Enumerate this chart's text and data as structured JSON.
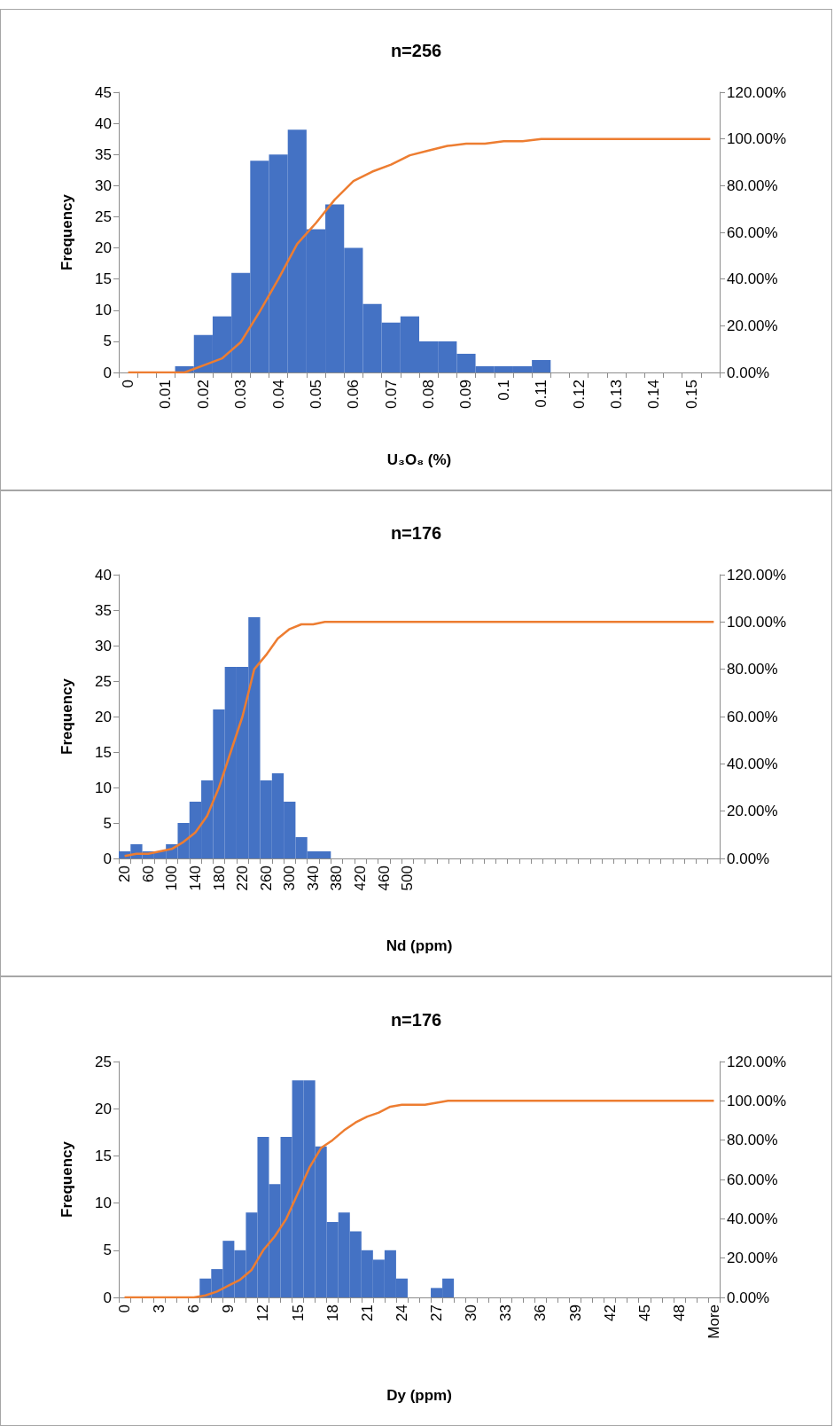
{
  "chart_data": [
    {
      "type": "bar",
      "title": "n=256",
      "xlabel": "U₃O₈ (%)",
      "ylabel": "Frequency",
      "categories": [
        "0",
        null,
        "0.01",
        null,
        "0.02",
        null,
        "0.03",
        null,
        "0.04",
        null,
        "0.05",
        null,
        "0.06",
        null,
        "0.07",
        null,
        "0.08",
        null,
        "0.09",
        null,
        "0.1",
        null,
        "0.11",
        null,
        "0.12",
        null,
        "0.13",
        null,
        "0.14",
        null,
        "0.15",
        null
      ],
      "series": [
        {
          "color": "#4472c4",
          "values": [
            0,
            0,
            0,
            1,
            6,
            9,
            16,
            34,
            35,
            39,
            23,
            27,
            20,
            11,
            8,
            9,
            5,
            5,
            3,
            1,
            1,
            1,
            2,
            0,
            0,
            0,
            0,
            0,
            0,
            0,
            0,
            0
          ]
        },
        {
          "type": "line",
          "axis": "y2",
          "color": "#ed7d31",
          "values": [
            0,
            0,
            0,
            0,
            3,
            6,
            13,
            26,
            40,
            55,
            64,
            74,
            82,
            86,
            89,
            93,
            95,
            97,
            98,
            98,
            99,
            99,
            100,
            100,
            100,
            100,
            100,
            100,
            100,
            100,
            100,
            100
          ]
        }
      ],
      "ylim": [
        0,
        45
      ],
      "yticks": [
        0,
        5,
        10,
        15,
        20,
        25,
        30,
        35,
        40,
        45
      ],
      "y2lim": [
        0,
        120
      ],
      "y2ticks": [
        {
          "value": 0,
          "label": "0.00%"
        },
        {
          "value": 20,
          "label": "20.00%"
        },
        {
          "value": 40,
          "label": "40.00%"
        },
        {
          "value": 60,
          "label": "60.00%"
        },
        {
          "value": 80,
          "label": "80.00%"
        },
        {
          "value": 100,
          "label": "100.00%"
        },
        {
          "value": 120,
          "label": "120.00%"
        }
      ]
    },
    {
      "type": "bar",
      "title": "n=176",
      "xlabel": "Nd (ppm)",
      "ylabel": "Frequency",
      "categories": [
        "20",
        null,
        "60",
        null,
        "100",
        null,
        "140",
        null,
        "180",
        null,
        "220",
        null,
        "260",
        null,
        "300",
        null,
        "340",
        null,
        "380",
        null,
        "420",
        null,
        "460",
        null,
        "500",
        null,
        null,
        null,
        null,
        null,
        null,
        null,
        null,
        null,
        null,
        null,
        null,
        null,
        null,
        null,
        null,
        null,
        null,
        null,
        null,
        null,
        null,
        null,
        null,
        null,
        null
      ],
      "series": [
        {
          "color": "#4472c4",
          "values": [
            1,
            2,
            1,
            1,
            2,
            5,
            8,
            11,
            21,
            27,
            27,
            34,
            11,
            12,
            8,
            3,
            1,
            1,
            0,
            0,
            0,
            0,
            0,
            0,
            0,
            0,
            0,
            0,
            0,
            0,
            0,
            0,
            0,
            0,
            0,
            0,
            0,
            0,
            0,
            0,
            0,
            0,
            0,
            0,
            0,
            0,
            0,
            0,
            0,
            0,
            0
          ]
        },
        {
          "type": "line",
          "axis": "y2",
          "color": "#ed7d31",
          "values": [
            1,
            2,
            2,
            3,
            4,
            7,
            11,
            18,
            30,
            45,
            60,
            80,
            86,
            93,
            97,
            99,
            99,
            100,
            100,
            100,
            100,
            100,
            100,
            100,
            100,
            100,
            100,
            100,
            100,
            100,
            100,
            100,
            100,
            100,
            100,
            100,
            100,
            100,
            100,
            100,
            100,
            100,
            100,
            100,
            100,
            100,
            100,
            100,
            100,
            100,
            100
          ]
        }
      ],
      "ylim": [
        0,
        40
      ],
      "yticks": [
        0,
        5,
        10,
        15,
        20,
        25,
        30,
        35,
        40
      ],
      "y2lim": [
        0,
        120
      ],
      "y2ticks": [
        {
          "value": 0,
          "label": "0.00%"
        },
        {
          "value": 20,
          "label": "20.00%"
        },
        {
          "value": 40,
          "label": "40.00%"
        },
        {
          "value": 60,
          "label": "60.00%"
        },
        {
          "value": 80,
          "label": "80.00%"
        },
        {
          "value": 100,
          "label": "100.00%"
        },
        {
          "value": 120,
          "label": "120.00%"
        }
      ]
    },
    {
      "type": "bar",
      "title": "n=176",
      "xlabel": "Dy (ppm)",
      "ylabel": "Frequency",
      "categories": [
        "0",
        null,
        null,
        "3",
        null,
        null,
        "6",
        null,
        null,
        "9",
        null,
        null,
        "12",
        null,
        null,
        "15",
        null,
        null,
        "18",
        null,
        null,
        "21",
        null,
        null,
        "24",
        null,
        null,
        "27",
        null,
        null,
        "30",
        null,
        null,
        "33",
        null,
        null,
        "36",
        null,
        null,
        "39",
        null,
        null,
        "42",
        null,
        null,
        "45",
        null,
        null,
        "48",
        null,
        null,
        "More"
      ],
      "series": [
        {
          "color": "#4472c4",
          "values": [
            0,
            0,
            0,
            0,
            0,
            0,
            0,
            2,
            3,
            6,
            5,
            9,
            17,
            12,
            17,
            23,
            23,
            16,
            8,
            9,
            7,
            5,
            4,
            5,
            2,
            0,
            0,
            1,
            2,
            0,
            0,
            0,
            0,
            0,
            0,
            0,
            0,
            0,
            0,
            0,
            0,
            0,
            0,
            0,
            0,
            0,
            0,
            0,
            0,
            0,
            0,
            0
          ]
        },
        {
          "type": "line",
          "axis": "y2",
          "color": "#ed7d31",
          "values": [
            0,
            0,
            0,
            0,
            0,
            0,
            0,
            1,
            3,
            6,
            9,
            14,
            24,
            31,
            40,
            53,
            66,
            76,
            80,
            85,
            89,
            92,
            94,
            97,
            98,
            98,
            98,
            99,
            100,
            100,
            100,
            100,
            100,
            100,
            100,
            100,
            100,
            100,
            100,
            100,
            100,
            100,
            100,
            100,
            100,
            100,
            100,
            100,
            100,
            100,
            100,
            100
          ]
        }
      ],
      "ylim": [
        0,
        25
      ],
      "yticks": [
        0,
        5,
        10,
        15,
        20,
        25
      ],
      "y2lim": [
        0,
        120
      ],
      "y2ticks": [
        {
          "value": 0,
          "label": "0.00%"
        },
        {
          "value": 20,
          "label": "20.00%"
        },
        {
          "value": 40,
          "label": "40.00%"
        },
        {
          "value": 60,
          "label": "60.00%"
        },
        {
          "value": 80,
          "label": "80.00%"
        },
        {
          "value": 100,
          "label": "100.00%"
        },
        {
          "value": 120,
          "label": "120.00%"
        }
      ]
    }
  ]
}
